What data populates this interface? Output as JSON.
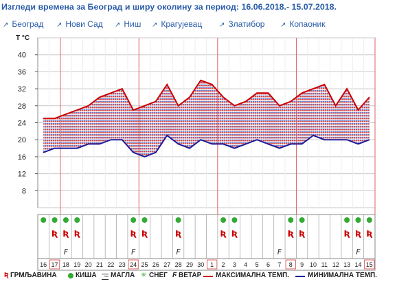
{
  "page": {
    "title": "Изгледи времена за Београд и ширу околину за период: 16.06.2018.- 15.07.2018.",
    "nav": [
      {
        "label": "Београд"
      },
      {
        "label": "Нови Сад"
      },
      {
        "label": "Ниш"
      },
      {
        "label": "Крагујевац"
      },
      {
        "label": "Златибор"
      },
      {
        "label": "Копаоник"
      }
    ],
    "nav_arrow": "↗"
  },
  "legend": {
    "thunder_symbol": "Ʀ",
    "thunder": "ГРМЉАВИНА",
    "rain": "КИША",
    "fog": "МАГЛА",
    "snow_symbol": "✳",
    "snow": "СНЕГ",
    "wind_symbol": "Ϝ",
    "wind": "ВЕТАР",
    "max": "МАКСИМАЛНА ТЕМП.",
    "min": "МИНИМАЛНА ТЕМП."
  },
  "colors": {
    "title": "#2a5caa",
    "max_line": "#cc0000",
    "min_line": "#1a1a99",
    "grid": "#999999",
    "week_divider": "#e06060",
    "rain_dot": "#33aa33",
    "thunder": "#cc0000",
    "wind": "#333333",
    "border": "#888888"
  },
  "chart_data": {
    "type": "line",
    "ylabel": "T °C",
    "yticks": [
      8,
      12,
      16,
      20,
      24,
      28,
      32,
      36,
      40
    ],
    "ylim": [
      4,
      44
    ],
    "grid": true,
    "x": [
      16,
      17,
      18,
      19,
      20,
      21,
      22,
      23,
      24,
      25,
      26,
      27,
      28,
      29,
      30,
      1,
      2,
      3,
      4,
      5,
      6,
      7,
      8,
      9,
      10,
      11,
      12,
      13,
      14,
      15
    ],
    "week_dividers_after_index": [
      1,
      8,
      15,
      22,
      29
    ],
    "boxed_days": [
      1,
      8,
      15,
      22,
      29
    ],
    "series": [
      {
        "name": "МАКСИМАЛНА ТЕМП.",
        "values": [
          25,
          25,
          26,
          27,
          28,
          30,
          31,
          32,
          27,
          28,
          29,
          33,
          28,
          30,
          34,
          33,
          30,
          28,
          29,
          31,
          31,
          28,
          29,
          31,
          32,
          33,
          28,
          32,
          27,
          30
        ]
      },
      {
        "name": "МИНИМАЛНА ТЕМП.",
        "values": [
          17,
          18,
          18,
          18,
          19,
          19,
          20,
          20,
          17,
          16,
          17,
          21,
          19,
          18,
          20,
          19,
          19,
          18,
          19,
          20,
          19,
          18,
          19,
          19,
          21,
          20,
          20,
          20,
          19,
          20
        ]
      }
    ],
    "events": {
      "rain_dot": [
        true,
        true,
        true,
        true,
        false,
        false,
        false,
        false,
        true,
        true,
        false,
        false,
        true,
        false,
        false,
        false,
        true,
        true,
        false,
        false,
        false,
        false,
        true,
        true,
        false,
        false,
        false,
        true,
        true,
        true
      ],
      "thunder": [
        false,
        true,
        true,
        true,
        false,
        false,
        false,
        false,
        true,
        true,
        false,
        false,
        true,
        false,
        false,
        false,
        true,
        true,
        false,
        false,
        false,
        false,
        true,
        true,
        false,
        false,
        false,
        true,
        true,
        true
      ],
      "wind": [
        false,
        false,
        true,
        false,
        false,
        false,
        false,
        false,
        true,
        false,
        false,
        false,
        true,
        false,
        false,
        false,
        false,
        false,
        false,
        false,
        false,
        true,
        false,
        false,
        false,
        false,
        false,
        false,
        true,
        false
      ]
    }
  }
}
